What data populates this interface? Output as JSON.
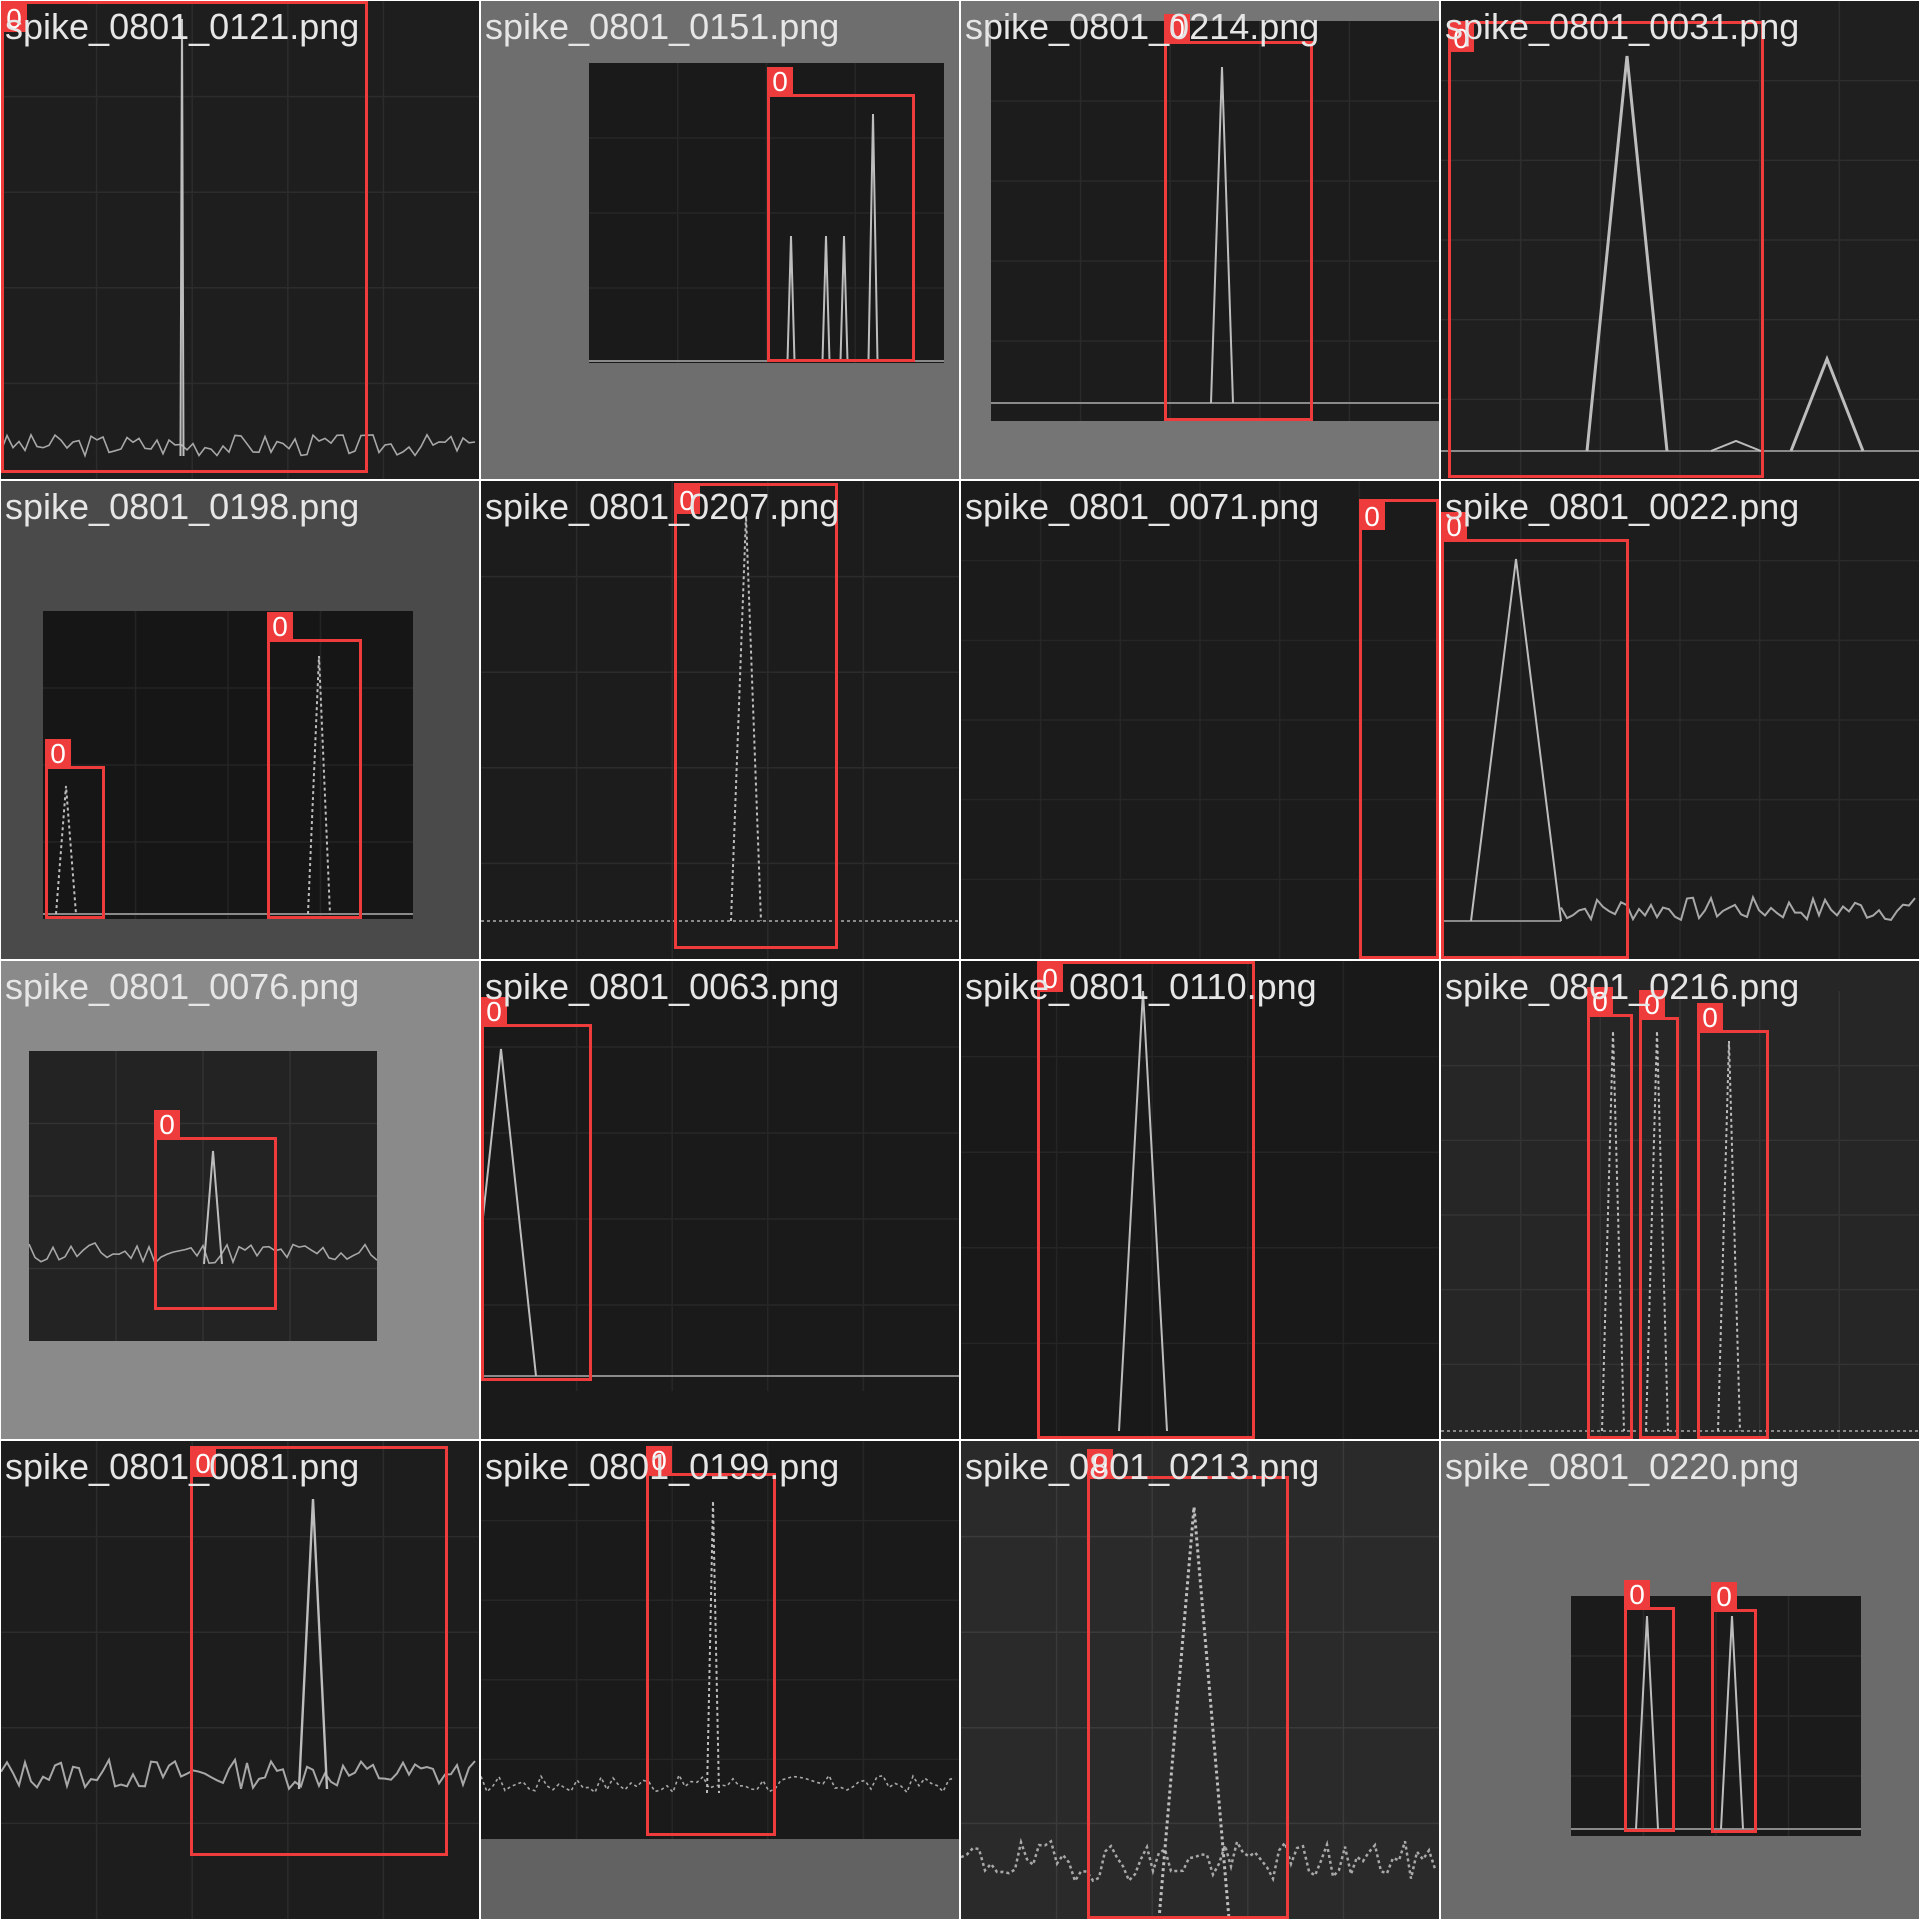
{
  "tiles": [
    {
      "filename": "spike_0801_0121.png",
      "background": "#1e1e1e",
      "detections": [
        {
          "label": "0"
        }
      ]
    },
    {
      "filename": "spike_0801_0151.png",
      "background": "#6e6e6e",
      "detections": [
        {
          "label": "0"
        }
      ]
    },
    {
      "filename": "spike_0801_0214.png",
      "background": "#757575",
      "detections": [
        {
          "label": "0"
        }
      ]
    },
    {
      "filename": "spike_0801_0031.png",
      "background": "#1f1f1f",
      "detections": [
        {
          "label": "0"
        }
      ]
    },
    {
      "filename": "spike_0801_0198.png",
      "background": "#4a4a4a",
      "detections": [
        {
          "label": "0"
        },
        {
          "label": "0"
        }
      ]
    },
    {
      "filename": "spike_0801_0207.png",
      "background": "#1c1c1c",
      "detections": [
        {
          "label": "0"
        }
      ]
    },
    {
      "filename": "spike_0801_0071.png",
      "background": "#1b1b1b",
      "detections": [
        {
          "label": "0"
        }
      ]
    },
    {
      "filename": "spike_0801_0022.png",
      "background": "#1d1d1d",
      "detections": [
        {
          "label": "0"
        }
      ]
    },
    {
      "filename": "spike_0801_0076.png",
      "background": "#8a8a8a",
      "detections": [
        {
          "label": "0"
        }
      ]
    },
    {
      "filename": "spike_0801_0063.png",
      "background": "#1a1a1a",
      "detections": [
        {
          "label": "0"
        }
      ]
    },
    {
      "filename": "spike_0801_0110.png",
      "background": "#191919",
      "detections": [
        {
          "label": "0"
        }
      ]
    },
    {
      "filename": "spike_0801_0216.png",
      "background": "#262626",
      "detections": [
        {
          "label": "0"
        },
        {
          "label": "0"
        },
        {
          "label": "0"
        }
      ]
    },
    {
      "filename": "spike_0801_0081.png",
      "background": "#1d1d1d",
      "detections": [
        {
          "label": "0"
        }
      ]
    },
    {
      "filename": "spike_0801_0199.png",
      "background": "#626262",
      "detections": [
        {
          "label": "0"
        }
      ]
    },
    {
      "filename": "spike_0801_0213.png",
      "background": "#2a2a2a",
      "detections": [
        {
          "label": "0"
        }
      ]
    },
    {
      "filename": "spike_0801_0220.png",
      "background": "#6b6b6b",
      "detections": [
        {
          "label": "0"
        },
        {
          "label": "0"
        }
      ]
    }
  ]
}
